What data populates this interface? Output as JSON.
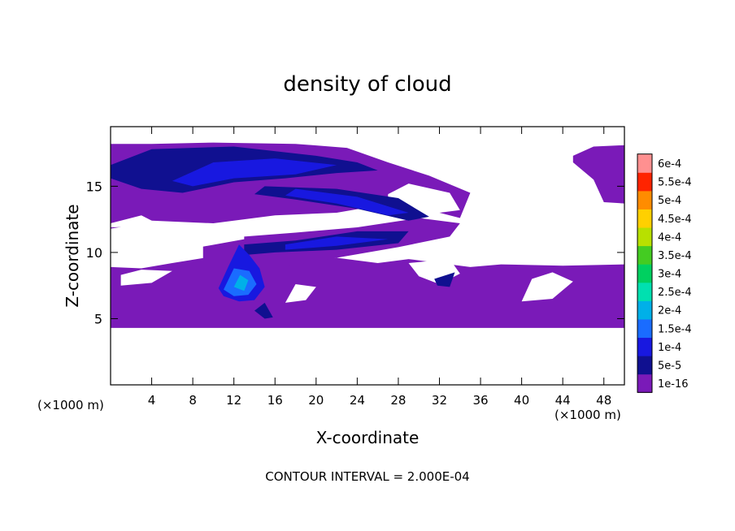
{
  "chart_data": {
    "type": "heatmap",
    "title": "density of cloud",
    "xlabel": "X-coordinate",
    "ylabel": "Z-coordinate",
    "x_unit": "(×1000 m)",
    "y_unit": "(×1000 m)",
    "footer": "CONTOUR INTERVAL = 2.000E-04",
    "xlim": [
      0,
      50
    ],
    "ylim": [
      0,
      19.5
    ],
    "x_ticks": [
      4,
      8,
      12,
      16,
      20,
      24,
      28,
      32,
      36,
      40,
      44,
      48
    ],
    "x_tick_labels": [
      "4",
      "8",
      "12",
      "16",
      "20",
      "24",
      "28",
      "32",
      "36",
      "40",
      "44",
      "48"
    ],
    "y_ticks": [
      5,
      10,
      15
    ],
    "y_tick_labels": [
      "5",
      "10",
      "15"
    ],
    "colorbar": {
      "levels": [
        1e-16,
        5e-05,
        0.0001,
        0.00015,
        0.0002,
        0.00025,
        0.0003,
        0.00035,
        0.0004,
        0.00045,
        0.0005,
        0.00055,
        0.0006
      ],
      "labels": [
        "1e-16",
        "5e-5",
        "1e-4",
        "1.5e-4",
        "2e-4",
        "2.5e-4",
        "3e-4",
        "3.5e-4",
        "4e-4",
        "4.5e-4",
        "5e-4",
        "5.5e-4",
        "6e-4"
      ],
      "colors": [
        "#7a1ab8",
        "#101090",
        "#1818e0",
        "#1a6cff",
        "#00b0e8",
        "#00e0b0",
        "#00d060",
        "#44cc22",
        "#b8e000",
        "#ffd000",
        "#ff8c00",
        "#ff2400",
        "#ff9090"
      ]
    },
    "fields": [
      {
        "name": "base_deck",
        "level": 1e-16,
        "x": [
          0,
          50
        ],
        "z": [
          4.3,
          9.0
        ]
      },
      {
        "name": "upper_band",
        "level": 1e-16,
        "x": [
          0,
          34
        ],
        "z": [
          11.5,
          18.2
        ]
      },
      {
        "name": "upper_core",
        "level": 5e-05,
        "x": [
          0,
          32
        ],
        "z": [
          12.0,
          17.8
        ]
      },
      {
        "name": "mid_core",
        "level": 5e-05,
        "x": [
          15,
          29
        ],
        "z": [
          10.0,
          11.6
        ]
      },
      {
        "name": "convective_cell",
        "level": 0.00015,
        "x": [
          10,
          15
        ],
        "z": [
          6.5,
          9.0
        ]
      },
      {
        "name": "right_patch",
        "level": 1e-16,
        "x": [
          45,
          50
        ],
        "z": [
          13.6,
          18.0
        ]
      }
    ]
  }
}
